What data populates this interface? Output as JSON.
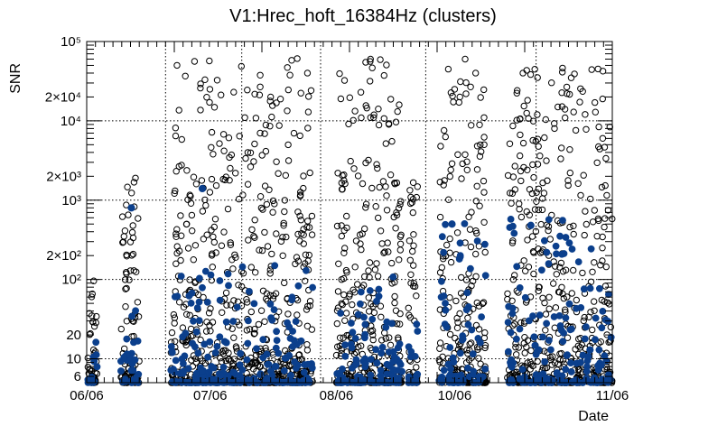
{
  "chart_data": {
    "type": "scatter",
    "title": "V1:Hrec_hoft_16384Hz (clusters)",
    "xlabel": "Date",
    "ylabel": "SNR",
    "yscale": "log",
    "ylim": [
      5,
      100000
    ],
    "xlim": [
      "06/06",
      "11/06"
    ],
    "x_tick_labels": [
      "06/06",
      "07/06",
      "08/06",
      "10/06",
      "11/06"
    ],
    "y_tick_labels": [
      "6",
      "10",
      "20",
      "10²",
      "2×10²",
      "10³",
      "2×10³",
      "10⁴",
      "2×10⁴",
      "10⁵"
    ],
    "grid": true,
    "series": [
      {
        "marker": "open-circle",
        "color": "#000000",
        "segments": [
          {
            "start": 0.002,
            "end": 0.02,
            "max": 100
          },
          {
            "start": 0.065,
            "end": 0.1,
            "max": 2000
          },
          {
            "start": 0.16,
            "end": 0.43,
            "max": 65000
          },
          {
            "start": 0.475,
            "end": 0.6,
            "max": 60000
          },
          {
            "start": 0.612,
            "end": 0.63,
            "max": 1800
          },
          {
            "start": 0.67,
            "end": 0.76,
            "max": 60000
          },
          {
            "start": 0.8,
            "end": 1.0,
            "max": 50000
          }
        ],
        "highlights": [
          {
            "x": 0.54,
            "y": 11000
          },
          {
            "x": 0.71,
            "y": 20000
          },
          {
            "x": 0.7,
            "y": 25000
          },
          {
            "x": 0.74,
            "y": 40000
          },
          {
            "x": 0.72,
            "y": 60000
          },
          {
            "x": 0.42,
            "y": 40000
          },
          {
            "x": 0.39,
            "y": 58000
          },
          {
            "x": 0.35,
            "y": 20000
          },
          {
            "x": 0.33,
            "y": 7000
          },
          {
            "x": 0.54,
            "y": 60000
          },
          {
            "x": 0.83,
            "y": 40000
          },
          {
            "x": 0.91,
            "y": 14000
          },
          {
            "x": 0.89,
            "y": 8000
          },
          {
            "x": 0.225,
            "y": 33000
          }
        ]
      },
      {
        "marker": "filled-circle",
        "color": "#0b3f8c",
        "segments": [
          {
            "start": 0.002,
            "end": 0.02,
            "max": 20
          },
          {
            "start": 0.065,
            "end": 0.1,
            "max": 60
          },
          {
            "start": 0.16,
            "end": 0.43,
            "max": 150
          },
          {
            "start": 0.475,
            "end": 0.6,
            "max": 120
          },
          {
            "start": 0.612,
            "end": 0.63,
            "max": 40
          },
          {
            "start": 0.67,
            "end": 0.76,
            "max": 520
          },
          {
            "start": 0.8,
            "end": 1.0,
            "max": 580
          }
        ],
        "highlights": [
          {
            "x": 0.085,
            "y": 800
          },
          {
            "x": 0.22,
            "y": 1400
          },
          {
            "x": 0.695,
            "y": 500
          },
          {
            "x": 0.845,
            "y": 480
          }
        ]
      }
    ]
  }
}
